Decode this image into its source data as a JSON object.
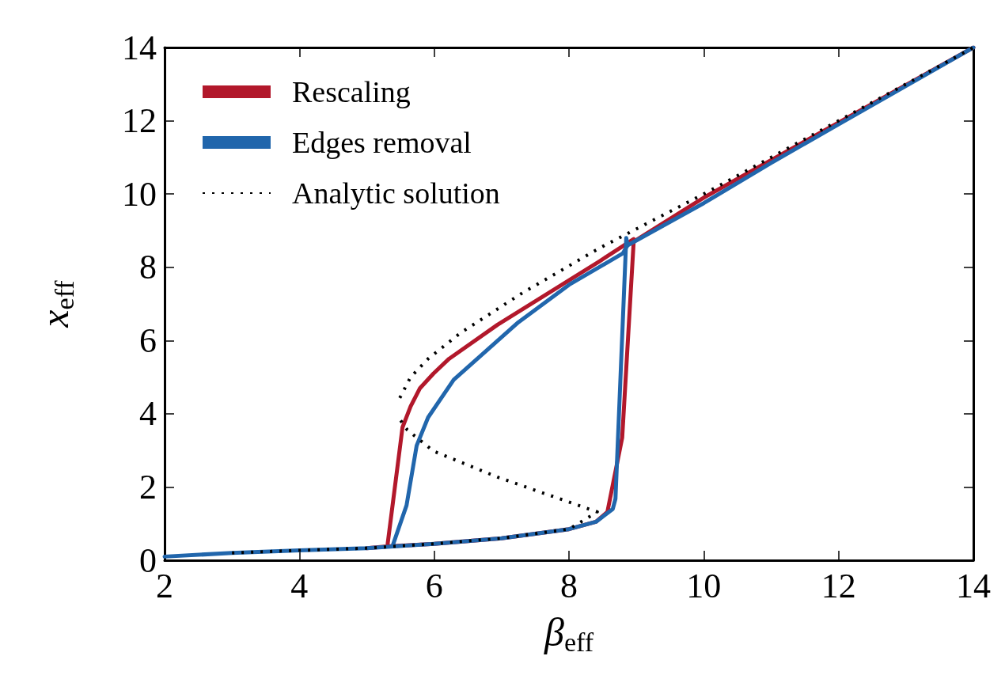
{
  "chart_data": {
    "type": "line",
    "xlabel": "β$_{eff}$",
    "ylabel": "x$_{eff}$",
    "xlim": [
      2,
      14
    ],
    "xticks": [
      2,
      4,
      6,
      8,
      10,
      12,
      14
    ],
    "ylim": [
      0,
      14
    ],
    "yticks": [
      0,
      2,
      4,
      6,
      8,
      10,
      12,
      14
    ],
    "grid": false,
    "legend": "top left",
    "marker": "none",
    "series": [
      {
        "name": "Rescaling",
        "color": "#b2182b",
        "line_style": "solid",
        "x": [
          5,
          5.3,
          6,
          7,
          8,
          8.4,
          8.57,
          8.79,
          8.96,
          10,
          12,
          14,
          null,
          5.31,
          5.53,
          5.65,
          5.79,
          5.99,
          6.22,
          6.94,
          7.7,
          8.46,
          8.96
        ],
        "values": [
          0.33,
          0.38,
          0.45,
          0.6,
          0.85,
          1.05,
          1.32,
          3.35,
          8.7,
          9.9,
          11.95,
          14,
          null,
          0.45,
          3.63,
          4.2,
          4.7,
          5.1,
          5.5,
          6.43,
          7.3,
          8.17,
          8.77
        ]
      },
      {
        "name": "Edges removal",
        "color": "#2166ac",
        "line_style": "solid",
        "x": [
          2,
          3,
          4,
          5,
          5.4,
          6,
          7,
          8,
          8.4,
          8.65,
          8.69,
          8.85,
          8.87,
          10,
          11,
          12,
          14,
          null,
          5.39,
          5.59,
          5.74,
          5.91,
          6.29,
          7.25,
          8,
          8.8,
          8.87
        ],
        "values": [
          0.1,
          0.2,
          0.27,
          0.33,
          0.38,
          0.45,
          0.6,
          0.85,
          1.05,
          1.4,
          1.68,
          8.8,
          8.6,
          9.75,
          10.85,
          11.9,
          14,
          null,
          0.43,
          1.5,
          3.13,
          3.9,
          4.93,
          6.5,
          7.52,
          8.38,
          8.6
        ]
      },
      {
        "name": "Analytic solution",
        "color": "#000000",
        "line_style": "dotted",
        "x": [
          3,
          4,
          5,
          6,
          7,
          8,
          8.42,
          6.94,
          5.99,
          5.6,
          5.47,
          null,
          5.49,
          5.65,
          5.91,
          6.4,
          7.31,
          8.46,
          10,
          12,
          14
        ],
        "values": [
          0.2,
          0.27,
          0.33,
          0.45,
          0.6,
          0.85,
          1.32,
          2.27,
          2.98,
          3.56,
          3.9,
          null,
          4.43,
          5.0,
          5.5,
          6.22,
          7.3,
          8.53,
          10,
          12,
          14
        ]
      }
    ]
  }
}
